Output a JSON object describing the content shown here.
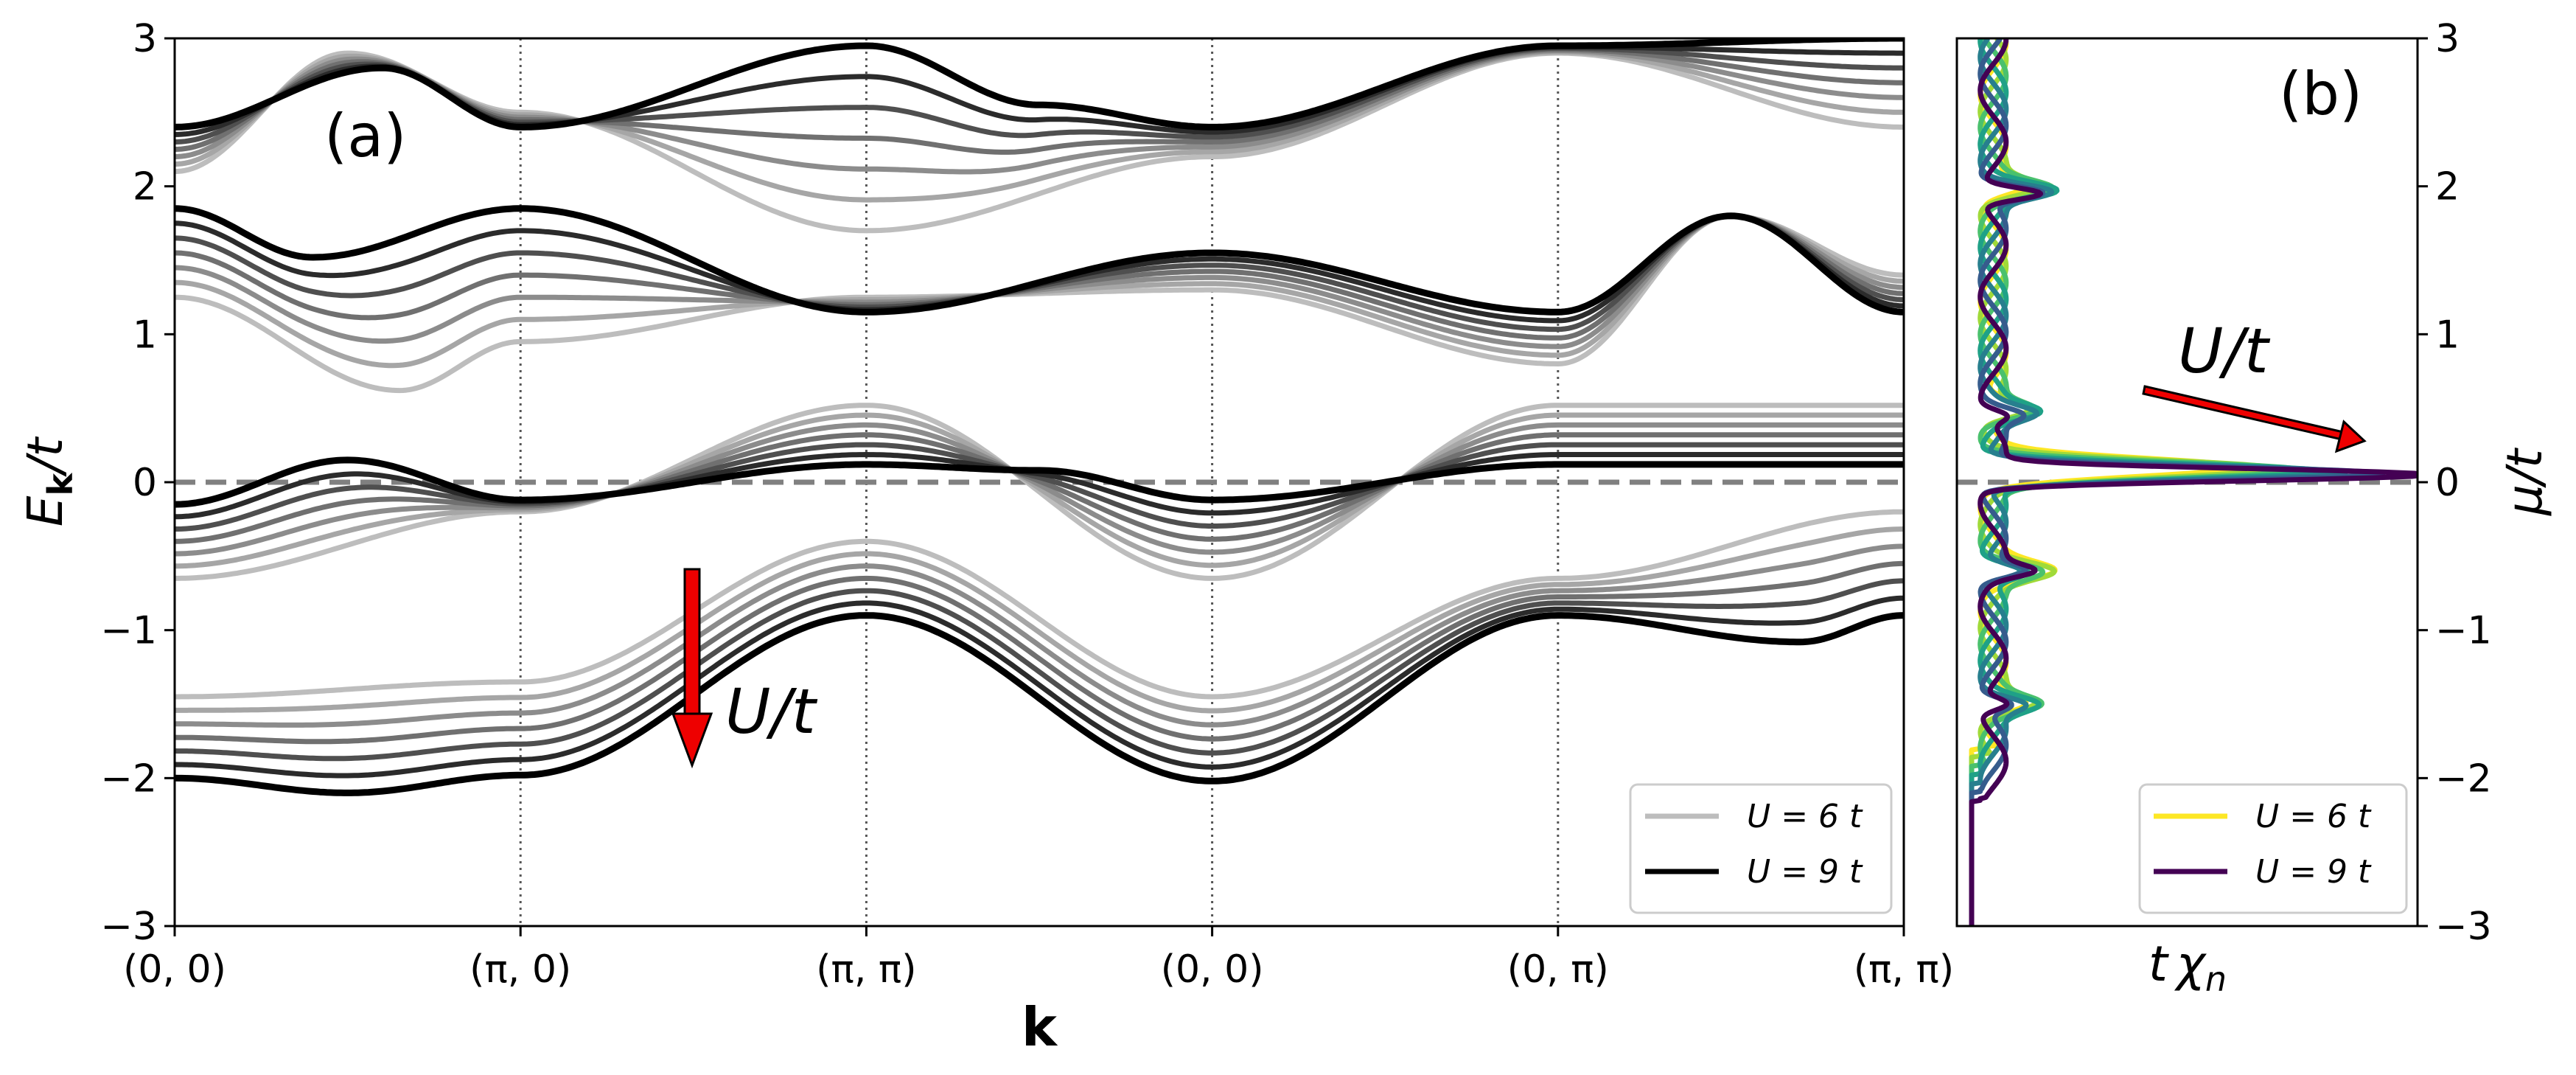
{
  "chart_data": [
    {
      "panel": "a",
      "type": "line",
      "panel_label": "(a)",
      "xlabel": "k",
      "ylabel_main": "E",
      "ylabel_sub": "k",
      "ylabel_tail": "/t",
      "ylim": [
        -3,
        3
      ],
      "yticks": [
        -3,
        -2,
        -1,
        0,
        1,
        2,
        3
      ],
      "ytick_labels": [
        "−3",
        "−2",
        "−1",
        "0",
        "1",
        "2",
        "3"
      ],
      "k_path_labels": [
        "(0, 0)",
        "(π, 0)",
        "(π, π)",
        "(0, 0)",
        "(0, π)",
        "(π, π)"
      ],
      "grid": "vertical dotted lines at k-path points",
      "reference_line": {
        "y": 0,
        "style": "dashed",
        "color": "#808080"
      },
      "arrow_annotation": {
        "text": "U/t",
        "direction": "down",
        "color": "#ee0000"
      },
      "legend": {
        "position": "lower right",
        "entries": [
          {
            "label": "U = 6 t",
            "color": "#bdbdbd"
          },
          {
            "label": "U = 9 t",
            "color": "#000000"
          }
        ]
      },
      "series_colors": [
        "#bdbdbd",
        "#a6a6a6",
        "#8c8c8c",
        "#707070",
        "#4f4f4f",
        "#2b2b2b",
        "#000000"
      ],
      "bands": [
        {
          "name": "lower band",
          "U6": [
            [
              0,
              -1.45
            ],
            [
              1,
              -1.35
            ],
            [
              2,
              -0.4
            ],
            [
              3,
              -1.45
            ],
            [
              4,
              -0.65
            ],
            [
              5,
              -0.2
            ]
          ],
          "U9": [
            [
              0,
              -2.0
            ],
            [
              0.5,
              -2.1
            ],
            [
              1,
              -1.98
            ],
            [
              2,
              -0.9
            ],
            [
              3,
              -2.02
            ],
            [
              4,
              -0.9
            ],
            [
              4.7,
              -1.08
            ],
            [
              5,
              -0.9
            ]
          ]
        },
        {
          "name": "middle band",
          "U6": [
            [
              0,
              -0.65
            ],
            [
              1,
              -0.2
            ],
            [
              2,
              0.52
            ],
            [
              3,
              -0.65
            ],
            [
              4,
              0.52
            ],
            [
              5,
              0.52
            ]
          ],
          "U9": [
            [
              0,
              -0.15
            ],
            [
              0.5,
              0.15
            ],
            [
              1,
              -0.12
            ],
            [
              2,
              0.12
            ],
            [
              2.5,
              0.08
            ],
            [
              3,
              -0.12
            ],
            [
              4,
              0.12
            ],
            [
              5,
              0.12
            ]
          ]
        },
        {
          "name": "upper band 1",
          "U6": [
            [
              0,
              1.25
            ],
            [
              0.65,
              0.62
            ],
            [
              1,
              0.95
            ],
            [
              2,
              1.25
            ],
            [
              3,
              1.3
            ],
            [
              4,
              0.8
            ],
            [
              4.5,
              1.8
            ],
            [
              5,
              1.4
            ]
          ],
          "U9": [
            [
              0,
              1.85
            ],
            [
              0.4,
              1.52
            ],
            [
              1,
              1.85
            ],
            [
              2,
              1.15
            ],
            [
              3,
              1.55
            ],
            [
              4,
              1.15
            ],
            [
              4.5,
              1.8
            ],
            [
              5,
              1.15
            ]
          ]
        },
        {
          "name": "upper band 2",
          "U6": [
            [
              0,
              2.1
            ],
            [
              0.5,
              2.9
            ],
            [
              1,
              2.5
            ],
            [
              2,
              1.7
            ],
            [
              3,
              2.2
            ],
            [
              4,
              2.9
            ],
            [
              5,
              2.4
            ]
          ],
          "U9": [
            [
              0,
              2.4
            ],
            [
              0.6,
              2.8
            ],
            [
              1,
              2.4
            ],
            [
              2,
              2.95
            ],
            [
              2.5,
              2.55
            ],
            [
              3,
              2.4
            ],
            [
              4,
              2.95
            ],
            [
              5,
              3.0
            ]
          ]
        }
      ]
    },
    {
      "panel": "b",
      "type": "line",
      "panel_label": "(b)",
      "xlabel_main": "t",
      "xlabel_chi": "χ",
      "xlabel_sub": "n",
      "ylabel": "μ/t",
      "ylim": [
        -3,
        3
      ],
      "yticks": [
        -3,
        -2,
        -1,
        0,
        1,
        2,
        3
      ],
      "ytick_labels": [
        "−3",
        "−2",
        "−1",
        "0",
        "1",
        "2",
        "3"
      ],
      "yaxis_side": "right",
      "reference_line": {
        "y": 0,
        "style": "dashed",
        "color": "#808080"
      },
      "arrow_annotation": {
        "text": "U/t",
        "direction": "right-down",
        "color": "#ee0000"
      },
      "legend": {
        "position": "lower right",
        "entries": [
          {
            "label": "U = 6 t",
            "color": "#fde725"
          },
          {
            "label": "U = 9 t",
            "color": "#440154"
          }
        ]
      },
      "series_colors": [
        "#fde725",
        "#a0da39",
        "#4ac16d",
        "#1fa187",
        "#277f8e",
        "#365c8d",
        "#440154"
      ],
      "peaks": [
        {
          "mu": 0.1,
          "height_U6": 0.55,
          "height_U9": 1.0
        },
        {
          "mu": 0.5,
          "height_U6": 0.12,
          "height_U9": 0.05
        },
        {
          "mu": 2.0,
          "height_U6": 0.1,
          "height_U9": 0.14
        },
        {
          "mu": -0.6,
          "height_U6": 0.12,
          "height_U9": 0.08
        },
        {
          "mu": -1.5,
          "height_U6": 0.1,
          "height_U9": 0.06
        }
      ]
    }
  ]
}
